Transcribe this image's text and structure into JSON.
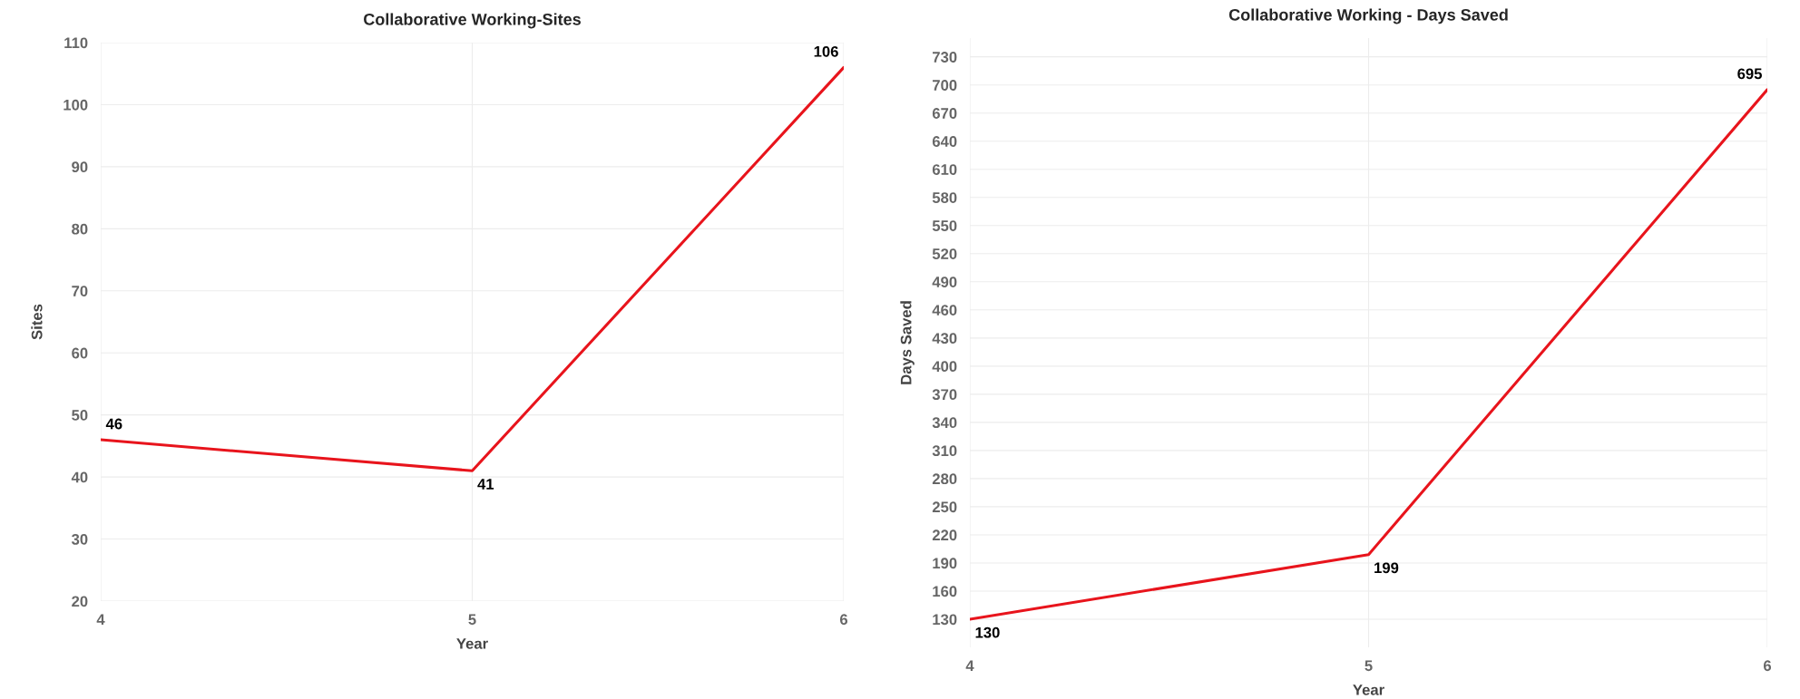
{
  "chart_data": [
    {
      "type": "line",
      "title": "Collaborative Working-Sites",
      "xlabel": "Year",
      "ylabel": "Sites",
      "x": [
        4,
        5,
        6
      ],
      "series": [
        {
          "color": "#e8141c",
          "values": [
            46,
            41,
            106
          ]
        }
      ],
      "xlim": [
        4,
        6
      ],
      "xticks": [
        4,
        5,
        6
      ],
      "ylim": [
        20,
        110
      ],
      "yticks": [
        20,
        30,
        40,
        50,
        60,
        70,
        80,
        90,
        100,
        110
      ],
      "grid": true,
      "data_labels": true
    },
    {
      "type": "line",
      "title": "Collaborative Working - Days Saved",
      "xlabel": "Year",
      "ylabel": "Days Saved",
      "x": [
        4,
        5,
        6
      ],
      "series": [
        {
          "color": "#e8141c",
          "values": [
            130,
            199,
            695
          ]
        }
      ],
      "xlim": [
        4,
        6
      ],
      "xticks": [
        4,
        5,
        6
      ],
      "ylim": [
        100,
        750
      ],
      "yticks": [
        130,
        160,
        190,
        220,
        250,
        280,
        310,
        340,
        370,
        400,
        430,
        460,
        490,
        520,
        550,
        580,
        610,
        640,
        670,
        700,
        730
      ],
      "grid": true,
      "data_labels": true
    }
  ]
}
